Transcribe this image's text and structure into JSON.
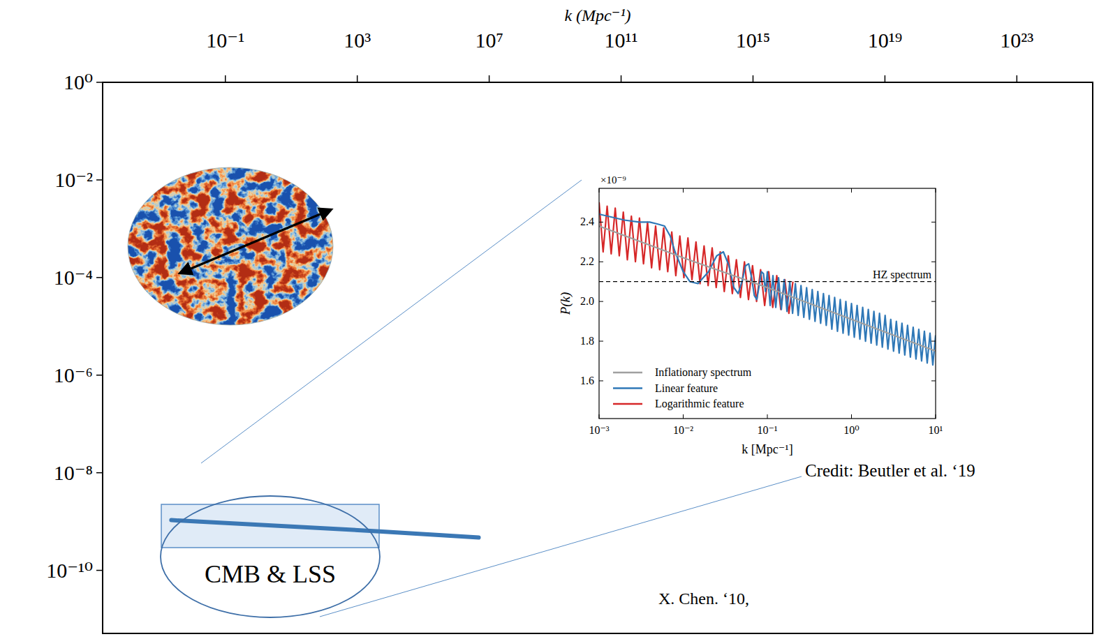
{
  "chart_data": [
    {
      "type": "line",
      "xlabel": "k (Mpc⁻¹)",
      "log": true,
      "xlim": [
        1.9e-05,
        2e+25
      ],
      "ylim": [
        5.1e-12,
        1
      ],
      "xticks": [
        {
          "value": 0.1,
          "label": "10⁻¹"
        },
        {
          "value": 1000,
          "label": "10³"
        },
        {
          "value": 10000000.0,
          "label": "10⁷"
        },
        {
          "value": 100000000000.0,
          "label": "10¹¹"
        },
        {
          "value": 1000000000000000.0,
          "label": "10¹⁵"
        },
        {
          "value": 1e+19,
          "label": "10¹⁹"
        },
        {
          "value": 1e+23,
          "label": "10²³"
        }
      ],
      "yticks": [
        {
          "value": 1,
          "label": "10⁰"
        },
        {
          "value": 0.01,
          "label": "10⁻²"
        },
        {
          "value": 0.0001,
          "label": "10⁻⁴"
        },
        {
          "value": 1e-06,
          "label": "10⁻⁶"
        },
        {
          "value": 1e-08,
          "label": "10⁻⁸"
        },
        {
          "value": 1e-10,
          "label": "10⁻¹⁰"
        }
      ],
      "series": [
        {
          "color": "#3b78b5",
          "x": [
            0.0023,
            4700,
            4800000
          ],
          "values": [
            1.07e-09,
            6.3e-10,
            4.7e-10
          ]
        }
      ],
      "annotations": [
        "CMB & LSS",
        "Credit: Beutler et al. ‘19",
        "X. Chen. ‘10,"
      ]
    },
    {
      "type": "line",
      "xlabel": "k [Mpc⁻¹]",
      "ylabel": "P(k)",
      "y_multiplier": "×10⁻⁹",
      "log": "x",
      "legend": "lower left",
      "xlim": [
        0.001,
        10
      ],
      "ylim": [
        1.41,
        2.57
      ],
      "xticks": [
        {
          "value": 0.001,
          "label": "10⁻³"
        },
        {
          "value": 0.01,
          "label": "10⁻²"
        },
        {
          "value": 0.1,
          "label": "10⁻¹"
        },
        {
          "value": 1,
          "label": "10⁰"
        },
        {
          "value": 10,
          "label": "10¹"
        }
      ],
      "yticks": [
        1.6,
        1.8,
        {
          "value": 2,
          "label": "2.0"
        },
        2.2,
        2.4
      ],
      "series": [
        {
          "name": "Inflationary spectrum",
          "color": "#a0a0a0",
          "x": [
            0.001,
            0.01,
            0.1,
            1,
            10
          ],
          "values": [
            2.38,
            2.22,
            2.07,
            1.91,
            1.75
          ]
        },
        {
          "name": "Linear feature",
          "color": "#2f78b7",
          "x": [
            0.001,
            0.002,
            0.003,
            0.004,
            0.005,
            0.006,
            0.007,
            0.008,
            0.01,
            0.012,
            0.015,
            0.02,
            0.025,
            0.03,
            0.035,
            0.04,
            0.045,
            0.05,
            0.055,
            0.06,
            0.065,
            0.07,
            0.075,
            0.08,
            0.085,
            0.09,
            0.095,
            0.1,
            0.108,
            0.1166,
            0.1259,
            0.1359,
            0.1468,
            0.1585,
            0.1711,
            0.1848,
            0.1995,
            0.2154,
            0.2326,
            0.2512,
            0.2712,
            0.2929,
            0.3162,
            0.3415,
            0.3687,
            0.3981,
            0.4299,
            0.4642,
            0.5012,
            0.5412,
            0.5843,
            0.631,
            0.6813,
            0.7356,
            0.7943,
            0.8577,
            0.9261,
            1,
            1.08,
            1.166,
            1.259,
            1.359,
            1.468,
            1.585,
            1.711,
            1.848,
            1.995,
            2.154,
            2.326,
            2.512,
            2.712,
            2.929,
            3.162,
            3.415,
            3.687,
            3.981,
            4.299,
            4.642,
            5.012,
            5.412,
            5.843,
            6.31,
            6.813,
            7.356,
            7.943,
            8.577,
            9.261,
            10
          ],
          "values": [
            2.44,
            2.41,
            2.4,
            2.4,
            2.39,
            2.38,
            2.33,
            2.25,
            2.15,
            2.1,
            2.09,
            2.15,
            2.23,
            2.25,
            2.18,
            2.07,
            2.04,
            2.1,
            2.18,
            2.19,
            2.12,
            2.03,
            2.01,
            2.08,
            2.15,
            2.14,
            2.05,
            2.15,
            1.98,
            2.13,
            1.97,
            2.12,
            1.96,
            2.11,
            1.95,
            2.1,
            1.94,
            2.09,
            1.93,
            2.08,
            1.92,
            2.07,
            1.91,
            2.06,
            1.9,
            2.05,
            1.89,
            2.04,
            1.88,
            2.03,
            1.86,
            2.02,
            1.85,
            2.01,
            1.84,
            2.0,
            1.83,
            1.99,
            1.82,
            1.98,
            1.81,
            1.97,
            1.8,
            1.96,
            1.79,
            1.95,
            1.78,
            1.94,
            1.77,
            1.93,
            1.76,
            1.91,
            1.75,
            1.9,
            1.74,
            1.89,
            1.73,
            1.88,
            1.72,
            1.87,
            1.71,
            1.86,
            1.7,
            1.85,
            1.69,
            1.84,
            1.68,
            1.83
          ]
        },
        {
          "name": "Logarithmic feature",
          "color": "#d62728",
          "x": [
            0.001,
            0.001117,
            0.001247,
            0.001393,
            0.001556,
            0.001738,
            0.001941,
            0.002168,
            0.002421,
            0.002704,
            0.00302,
            0.003373,
            0.003767,
            0.004207,
            0.004699,
            0.005248,
            0.005861,
            0.006546,
            0.007311,
            0.008166,
            0.00912,
            0.01019,
            0.01138,
            0.01271,
            0.01419,
            0.01585,
            0.0177,
            0.01977,
            0.02208,
            0.02466,
            0.02754,
            0.03076,
            0.03436,
            0.03837,
            0.04285,
            0.04786,
            0.05346,
            0.0597,
            0.06668,
            0.07447,
            0.08318,
            0.0929,
            0.1038,
            0.1159,
            0.1294,
            0.1445,
            0.1614,
            0.1803,
            0.2014
          ],
          "values": [
            2.5,
            2.25,
            2.48,
            2.24,
            2.47,
            2.23,
            2.45,
            2.21,
            2.43,
            2.2,
            2.42,
            2.19,
            2.4,
            2.17,
            2.38,
            2.16,
            2.37,
            2.15,
            2.35,
            2.13,
            2.33,
            2.12,
            2.32,
            2.11,
            2.3,
            2.09,
            2.28,
            2.08,
            2.27,
            2.07,
            2.25,
            2.05,
            2.23,
            2.04,
            2.21,
            2.02,
            2.2,
            2.01,
            2.18,
            2.0,
            2.16,
            1.98,
            2.15,
            1.97,
            2.13,
            1.96,
            2.11,
            1.94,
            2.1
          ]
        },
        {
          "name": "HZ spectrum",
          "color": "#000000",
          "line_style": "dashed",
          "x": [
            0.001,
            10
          ],
          "values": [
            2.1,
            2.1
          ]
        }
      ]
    }
  ]
}
